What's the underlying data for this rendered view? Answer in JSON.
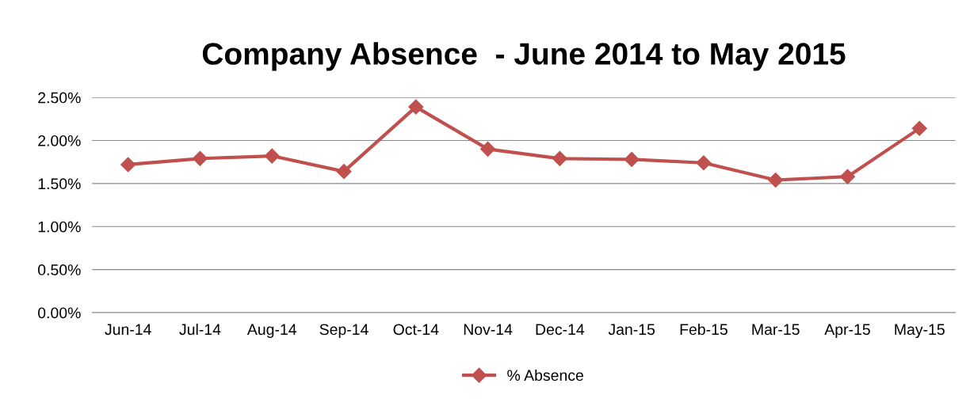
{
  "chart_data": {
    "type": "line",
    "title": "Company Absence  - June 2014 to May 2015",
    "categories": [
      "Jun-14",
      "Jul-14",
      "Aug-14",
      "Sep-14",
      "Oct-14",
      "Nov-14",
      "Dec-14",
      "Jan-15",
      "Feb-15",
      "Mar-15",
      "Apr-15",
      "May-15"
    ],
    "series": [
      {
        "name": "% Absence",
        "color": "#c0504d",
        "values": [
          1.72,
          1.79,
          1.82,
          1.64,
          2.39,
          1.9,
          1.79,
          1.78,
          1.74,
          1.54,
          1.58,
          2.14
        ]
      }
    ],
    "ylim": [
      0,
      2.5
    ],
    "yticks": [
      {
        "value": 0,
        "label": "0.00%"
      },
      {
        "value": 0.5,
        "label": "0.50%"
      },
      {
        "value": 1,
        "label": "1.00%"
      },
      {
        "value": 1.5,
        "label": "1.50%"
      },
      {
        "value": 2,
        "label": "2.00%"
      },
      {
        "value": 2.5,
        "label": "2.50%"
      }
    ],
    "grid": "y",
    "legend": "bottom",
    "marker": "diamond",
    "line_style": "solid"
  }
}
